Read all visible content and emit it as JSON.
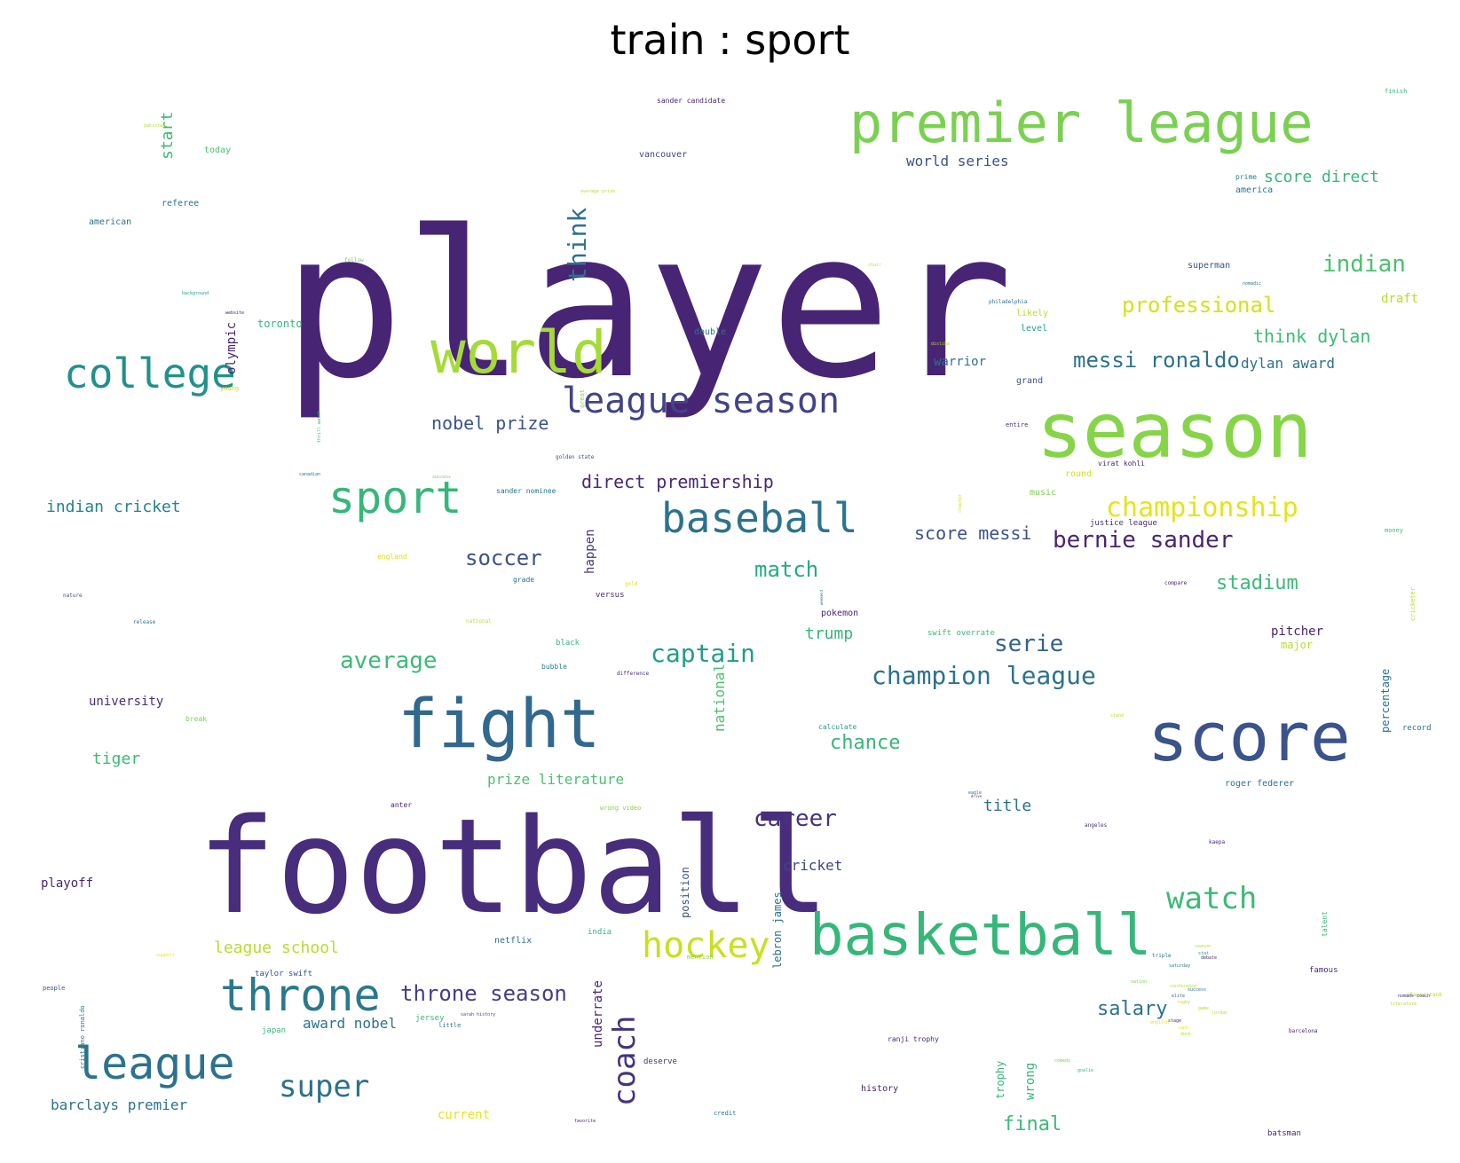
{
  "title": "train : sport",
  "words": [
    {
      "text": "player",
      "color": "#482475"
    },
    {
      "text": "premier league",
      "color": "#7ad151"
    },
    {
      "text": "world",
      "color": "#a5db36"
    },
    {
      "text": "college",
      "color": "#21918c"
    },
    {
      "text": "season",
      "color": "#86d549"
    },
    {
      "text": "league season",
      "color": "#414487"
    },
    {
      "text": "sport",
      "color": "#35b779"
    },
    {
      "text": "baseball",
      "color": "#2c728e"
    },
    {
      "text": "fight",
      "color": "#31688e"
    },
    {
      "text": "score",
      "color": "#3b528b"
    },
    {
      "text": "football",
      "color": "#472d7b"
    },
    {
      "text": "basketball",
      "color": "#35b779"
    },
    {
      "text": "throne",
      "color": "#2a788e"
    },
    {
      "text": "league",
      "color": "#2c728e"
    },
    {
      "text": "coach",
      "color": "#46337e"
    },
    {
      "text": "hockey",
      "color": "#c8e020"
    },
    {
      "text": "watch",
      "color": "#3bbb75"
    },
    {
      "text": "super",
      "color": "#2c728e"
    },
    {
      "text": "messi ronaldo",
      "color": "#2c728e"
    },
    {
      "text": "championship",
      "color": "#e5e419"
    },
    {
      "text": "bernie sander",
      "color": "#482475"
    },
    {
      "text": "indian",
      "color": "#4ac16d"
    },
    {
      "text": "professional",
      "color": "#d2e21b"
    },
    {
      "text": "think dylan",
      "color": "#3bbb75"
    },
    {
      "text": "direct premiership",
      "color": "#482878"
    },
    {
      "text": "nobel prize",
      "color": "#3b528b"
    },
    {
      "text": "think",
      "color": "#2c728e"
    },
    {
      "text": "captain",
      "color": "#1f9e89"
    },
    {
      "text": "champion league",
      "color": "#2c728e"
    },
    {
      "text": "average",
      "color": "#3bbb75"
    },
    {
      "text": "soccer",
      "color": "#3b528b"
    },
    {
      "text": "match",
      "color": "#25ab82"
    },
    {
      "text": "throne season",
      "color": "#433e85"
    },
    {
      "text": "serie",
      "color": "#33638d"
    },
    {
      "text": "stadium",
      "color": "#3bbb75"
    },
    {
      "text": "career",
      "color": "#46337e"
    },
    {
      "text": "chance",
      "color": "#35b779"
    },
    {
      "text": "salary",
      "color": "#2c728e"
    },
    {
      "text": "score messi",
      "color": "#3b528b"
    },
    {
      "text": "indian cricket",
      "color": "#26828e"
    },
    {
      "text": "world series",
      "color": "#3b528b"
    },
    {
      "text": "score direct",
      "color": "#35b779"
    },
    {
      "text": "league school",
      "color": "#b5de2b"
    },
    {
      "text": "title",
      "color": "#2c728e"
    },
    {
      "text": "final",
      "color": "#3bbb75"
    },
    {
      "text": "trump",
      "color": "#35b779"
    },
    {
      "text": "dylan award",
      "color": "#2c728e"
    },
    {
      "text": "tiger",
      "color": "#3bbb75"
    },
    {
      "text": "prize literature",
      "color": "#4ac16d"
    },
    {
      "text": "cricket",
      "color": "#404688"
    },
    {
      "text": "award nobel",
      "color": "#2c728e"
    },
    {
      "text": "barclays premier",
      "color": "#2c728e"
    },
    {
      "text": "start",
      "color": "#3bbb75"
    },
    {
      "text": "olympic",
      "color": "#482475"
    },
    {
      "text": "national",
      "color": "#4ac16d"
    },
    {
      "text": "underrate",
      "color": "#482475"
    },
    {
      "text": "happen",
      "color": "#46337e"
    },
    {
      "text": "pitcher",
      "color": "#482475"
    },
    {
      "text": "draft",
      "color": "#b5de2b"
    },
    {
      "text": "university",
      "color": "#472d7b"
    },
    {
      "text": "playoff",
      "color": "#482475"
    },
    {
      "text": "warrior",
      "color": "#2c728e"
    },
    {
      "text": "current",
      "color": "#e5e419"
    },
    {
      "text": "major",
      "color": "#b5de2b"
    },
    {
      "text": "percentage",
      "color": "#2c728e"
    },
    {
      "text": "lebron james",
      "color": "#2c728e"
    },
    {
      "text": "position",
      "color": "#3b528b"
    },
    {
      "text": "trophy",
      "color": "#35b779"
    },
    {
      "text": "wrong",
      "color": "#35b779"
    },
    {
      "text": "toronto",
      "color": "#35b779"
    },
    {
      "text": "roger federer",
      "color": "#2c728e"
    },
    {
      "text": "today",
      "color": "#4ac16d"
    },
    {
      "text": "referee",
      "color": "#2c728e"
    },
    {
      "text": "american",
      "color": "#2c728e"
    },
    {
      "text": "vancouver",
      "color": "#414487"
    },
    {
      "text": "likely",
      "color": "#b5de2b"
    },
    {
      "text": "level",
      "color": "#1f9e89"
    },
    {
      "text": "grand",
      "color": "#3b528b"
    },
    {
      "text": "double",
      "color": "#2c728e"
    },
    {
      "text": "superman",
      "color": "#3b528b"
    },
    {
      "text": "america",
      "color": "#2c728e"
    },
    {
      "text": "prime",
      "color": "#26828e"
    },
    {
      "text": "round",
      "color": "#d2e21b"
    },
    {
      "text": "music",
      "color": "#7ad151"
    },
    {
      "text": "justice league",
      "color": "#472d7b"
    },
    {
      "text": "pokemon",
      "color": "#482475"
    },
    {
      "text": "swift overrate",
      "color": "#3bbb75"
    },
    {
      "text": "versus",
      "color": "#472d7b"
    },
    {
      "text": "grade",
      "color": "#2c728e"
    },
    {
      "text": "black",
      "color": "#35b779"
    },
    {
      "text": "bubble",
      "color": "#26828e"
    },
    {
      "text": "netflix",
      "color": "#2c728e"
    },
    {
      "text": "india",
      "color": "#35b779"
    },
    {
      "text": "taylor swift",
      "color": "#3b528b"
    },
    {
      "text": "japan",
      "color": "#35b779"
    },
    {
      "text": "jersey",
      "color": "#35b779"
    },
    {
      "text": "deserve",
      "color": "#46337e"
    },
    {
      "text": "history",
      "color": "#482475"
    },
    {
      "text": "famous",
      "color": "#472d7b"
    },
    {
      "text": "record",
      "color": "#2c728e"
    },
    {
      "text": "batsman",
      "color": "#482475"
    },
    {
      "text": "calculate",
      "color": "#1f9e89"
    },
    {
      "text": "break",
      "color": "#7ad151"
    },
    {
      "text": "ranji trophy",
      "color": "#482475"
    },
    {
      "text": "virat kohli",
      "color": "#482475"
    },
    {
      "text": "sander candidate",
      "color": "#482475"
    },
    {
      "text": "sander nominee",
      "color": "#2c728e"
    },
    {
      "text": "england",
      "color": "#d2e21b"
    },
    {
      "text": "money",
      "color": "#3bbb75"
    },
    {
      "text": "people",
      "color": "#3b528b"
    },
    {
      "text": "credit",
      "color": "#2c728e"
    },
    {
      "text": "finish",
      "color": "#35b779"
    },
    {
      "text": "anter",
      "color": "#482475"
    },
    {
      "text": "wrong video",
      "color": "#86d549"
    },
    {
      "text": "little",
      "color": "#2c728e"
    },
    {
      "text": "entire",
      "color": "#472d7b"
    },
    {
      "text": "great",
      "color": "#86d549"
    },
    {
      "text": "young",
      "color": "#d2e21b"
    },
    {
      "text": "cristiano ronaldo",
      "color": "#2c728e"
    },
    {
      "text": "golden state",
      "color": "#3b528b"
    },
    {
      "text": "compare",
      "color": "#482475"
    },
    {
      "text": "cricketer",
      "color": "#b5de2b"
    },
    {
      "text": "talent",
      "color": "#35b779"
    },
    {
      "text": "difference",
      "color": "#472d7b"
    },
    {
      "text": "angeles",
      "color": "#472d7b"
    },
    {
      "text": "sarah history",
      "color": "#3b528b"
    },
    {
      "text": "favorite",
      "color": "#482475"
    },
    {
      "text": "triple",
      "color": "#2c728e"
    },
    {
      "text": "kaepa",
      "color": "#482475"
    },
    {
      "text": "eagle",
      "color": "#2c728e"
    },
    {
      "text": "pakistan",
      "color": "#b5de2b"
    },
    {
      "text": "nature",
      "color": "#3b528b"
    },
    {
      "text": "release",
      "color": "#2c728e"
    },
    {
      "text": "mention",
      "color": "#86d549"
    },
    {
      "text": "player rank",
      "color": "#b5de2b"
    },
    {
      "text": "national",
      "color": "#b5de2b"
    },
    {
      "text": "barcelona",
      "color": "#482475"
    },
    {
      "text": "background",
      "color": "#1f9e89"
    },
    {
      "text": "website",
      "color": "#482475"
    },
    {
      "text": "success",
      "color": "#7ad151"
    },
    {
      "text": "canadian",
      "color": "#2c728e"
    },
    {
      "text": "average prize",
      "color": "#b5de2b"
    },
    {
      "text": "follow",
      "color": "#7ad151"
    },
    {
      "text": "dislike",
      "color": "#b5de2b"
    },
    {
      "text": "nomadic",
      "color": "#2c728e"
    },
    {
      "text": "philadelphia",
      "color": "#2c728e"
    },
    {
      "text": "chapter",
      "color": "#d2e21b"
    },
    {
      "text": "thrill watch",
      "color": "#35b779"
    },
    {
      "text": "chair",
      "color": "#d2e21b"
    },
    {
      "text": "gold",
      "color": "#d2e21b"
    },
    {
      "text": "weekend",
      "color": "#2c728e"
    },
    {
      "text": "goalie",
      "color": "#35b779"
    },
    {
      "text": "nomads coach",
      "color": "#472d7b"
    },
    {
      "text": "english",
      "color": "#e5e419"
    },
    {
      "text": "literature",
      "color": "#b5de2b"
    },
    {
      "text": "stand",
      "color": "#b5de2b"
    },
    {
      "text": "drive",
      "color": "#482475"
    },
    {
      "text": "comedy",
      "color": "#7ad151"
    },
    {
      "text": "support",
      "color": "#e5e419"
    },
    {
      "text": "season",
      "color": "#b5de2b"
    },
    {
      "text": "stat",
      "color": "#1f9e89"
    },
    {
      "text": "debate",
      "color": "#472d7b"
    },
    {
      "text": "saturday",
      "color": "#2c728e"
    },
    {
      "text": "nation",
      "color": "#7ad151"
    },
    {
      "text": "conference",
      "color": "#b5de2b"
    },
    {
      "text": "success",
      "color": "#2c728e"
    },
    {
      "text": "elite",
      "color": "#2c728e"
    },
    {
      "text": "rugby",
      "color": "#b5de2b"
    },
    {
      "text": "game",
      "color": "#b5de2b"
    },
    {
      "text": "jordan",
      "color": "#b5de2b"
    },
    {
      "text": "stage",
      "color": "#472d7b"
    },
    {
      "text": "rank",
      "color": "#e5e419"
    },
    {
      "text": "dunk",
      "color": "#b5de2b"
    },
    {
      "text": "fans",
      "color": "#d2e21b"
    },
    {
      "text": "legend",
      "color": "#2c728e"
    },
    {
      "text": "winner",
      "color": "#2c728e"
    },
    {
      "text": "sunday",
      "color": "#2c728e"
    },
    {
      "text": "gooch",
      "color": "#2c728e"
    },
    {
      "text": "chelsea",
      "color": "#7ad151"
    },
    {
      "text": "nomadic",
      "color": "#b5de2b"
    },
    {
      "text": "premiership",
      "color": "#b5de2b"
    }
  ]
}
